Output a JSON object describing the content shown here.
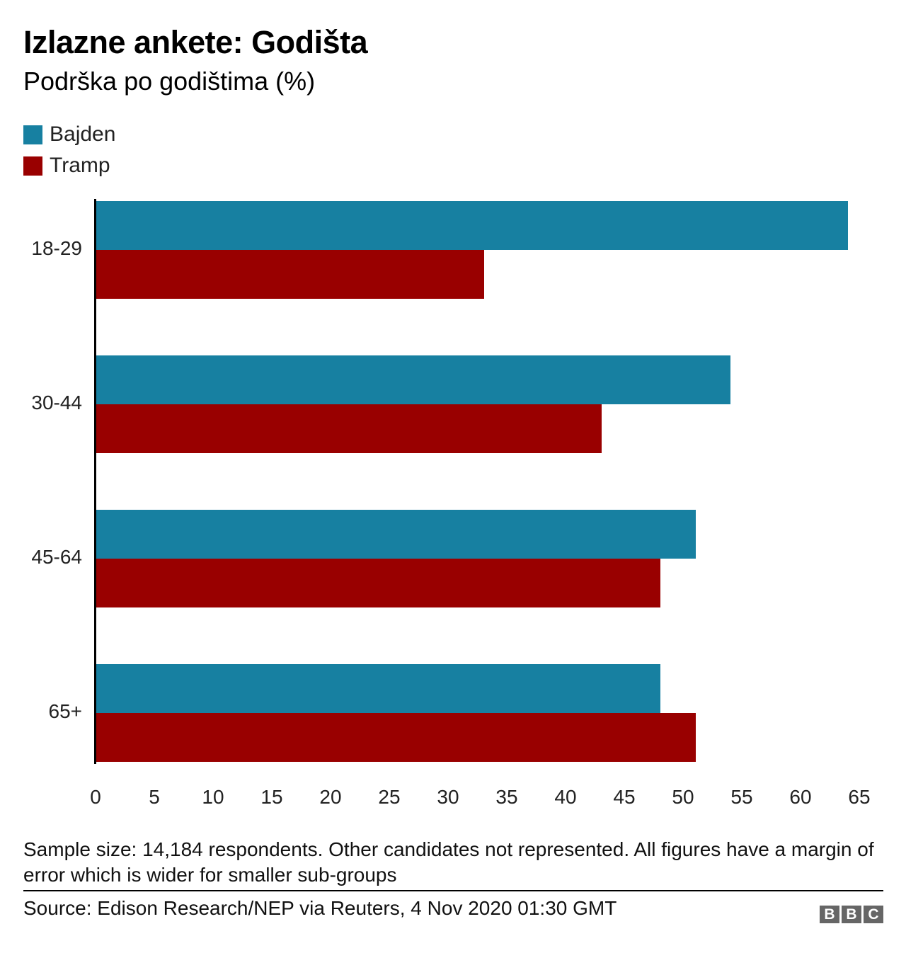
{
  "header": {
    "title": "Izlazne ankete: Godišta",
    "subtitle": "Podrška po godištima (%)"
  },
  "legend": [
    {
      "label": "Bajden",
      "color": "#1780a1"
    },
    {
      "label": "Tramp",
      "color": "#990000"
    }
  ],
  "footer": {
    "note": "Sample size: 14,184 respondents. Other candidates not represented. All figures have a margin of error which is wider for smaller sub-groups",
    "source": "Source: Edison Research/NEP via Reuters, 4 Nov 2020 01:30 GMT",
    "logo": [
      "B",
      "B",
      "C"
    ]
  },
  "chart_data": {
    "type": "bar",
    "orientation": "horizontal",
    "title": "Izlazne ankete: Godišta",
    "subtitle": "Podrška po godištima (%)",
    "xlabel": "",
    "ylabel": "",
    "xlim": [
      0,
      65
    ],
    "x_ticks": [
      "0",
      "5",
      "10",
      "15",
      "20",
      "25",
      "30",
      "35",
      "40",
      "45",
      "50",
      "55",
      "60",
      "65"
    ],
    "categories": [
      "18-29",
      "30-44",
      "45-64",
      "65+"
    ],
    "series": [
      {
        "name": "Bajden",
        "color": "#1780a1",
        "values": [
          64,
          54,
          51,
          48
        ]
      },
      {
        "name": "Tramp",
        "color": "#990000",
        "values": [
          33,
          43,
          48,
          51
        ]
      }
    ],
    "grid": false,
    "legend_position": "top-left"
  }
}
